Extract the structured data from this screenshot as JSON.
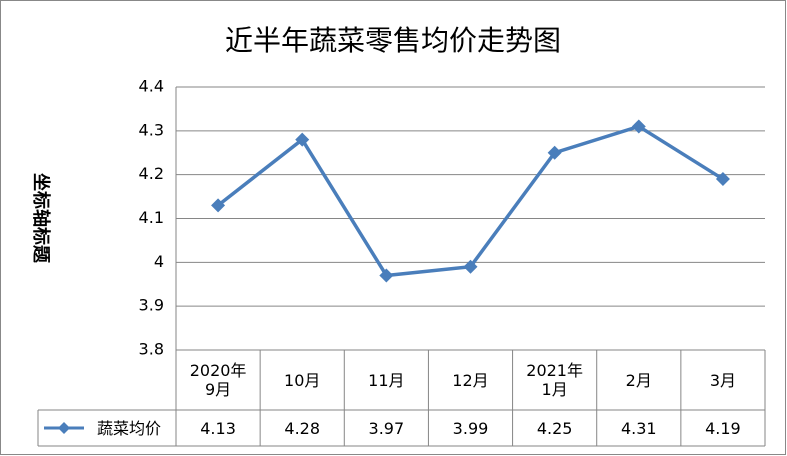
{
  "chart_data": {
    "type": "line",
    "title": "近半年蔬菜零售均价走势图",
    "y_label": "坐标轴标题",
    "categories": [
      "2020年\n9月",
      "10月",
      "11月",
      "12月",
      "2021年\n1月",
      "2月",
      "3月"
    ],
    "series": [
      {
        "name": "蔬菜均价",
        "color": "#4a7ebb",
        "values": [
          4.13,
          4.28,
          3.97,
          3.99,
          4.25,
          4.31,
          4.19
        ]
      }
    ],
    "ylim": [
      3.8,
      4.4
    ],
    "yticks": [
      3.8,
      3.9,
      4,
      4.1,
      4.2,
      4.3,
      4.4
    ],
    "grid": true,
    "data_table": true
  }
}
